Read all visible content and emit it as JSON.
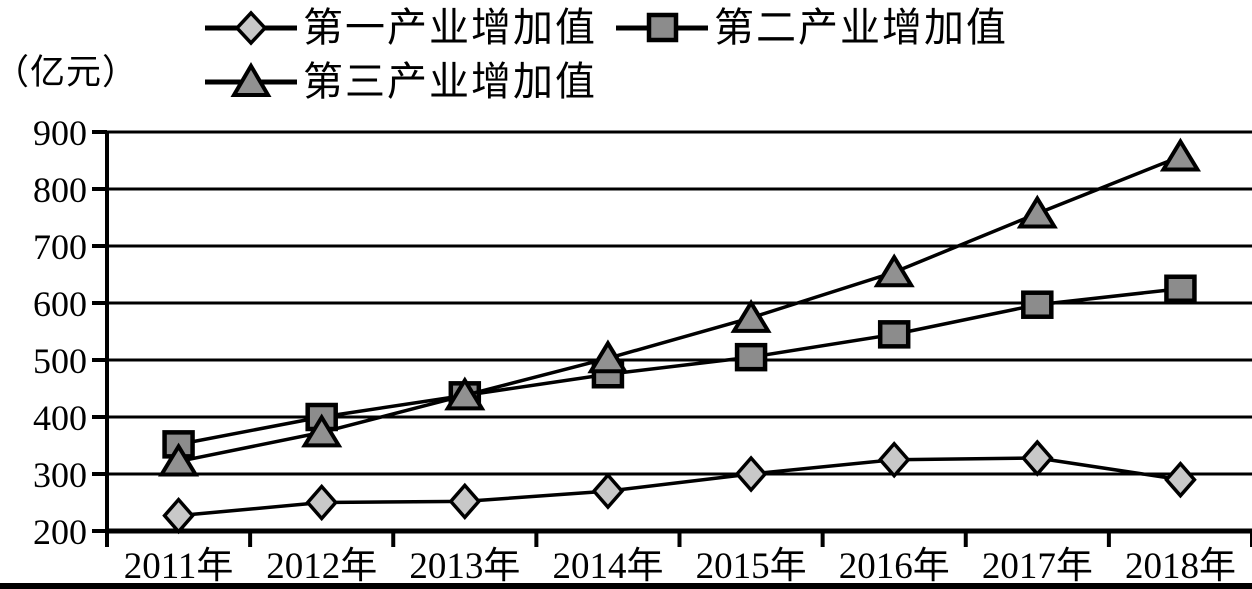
{
  "unit_label": "（亿元）",
  "colors": {
    "line": "#000000",
    "background": "#ffffff",
    "diamond_fill": "#c8c8c8",
    "square_fill": "#8c8c8c",
    "triangle_fill": "#919191"
  },
  "chart_data": {
    "type": "line",
    "title": "",
    "xlabel": "",
    "ylabel": "（亿元）",
    "categories": [
      "2011年",
      "2012年",
      "2013年",
      "2014年",
      "2015年",
      "2016年",
      "2017年",
      "2018年"
    ],
    "series": [
      {
        "name": "第一产业增加值",
        "marker": "diamond",
        "marker_fill": "#c8c8c8",
        "values": [
          227,
          250,
          252,
          270,
          300,
          325,
          328,
          290
        ]
      },
      {
        "name": "第二产业增加值",
        "marker": "square",
        "marker_fill": "#8c8c8c",
        "values": [
          352,
          400,
          438,
          475,
          505,
          545,
          597,
          625
        ]
      },
      {
        "name": "第三产业增加值",
        "marker": "triangle",
        "marker_fill": "#919191",
        "values": [
          322,
          373,
          438,
          503,
          574,
          654,
          757,
          857
        ]
      }
    ],
    "ylim": [
      200,
      900
    ],
    "ytick_step": 100,
    "yticks": [
      "200",
      "300",
      "400",
      "500",
      "600",
      "700",
      "800",
      "900"
    ],
    "grid": true,
    "legend_position": "top"
  }
}
